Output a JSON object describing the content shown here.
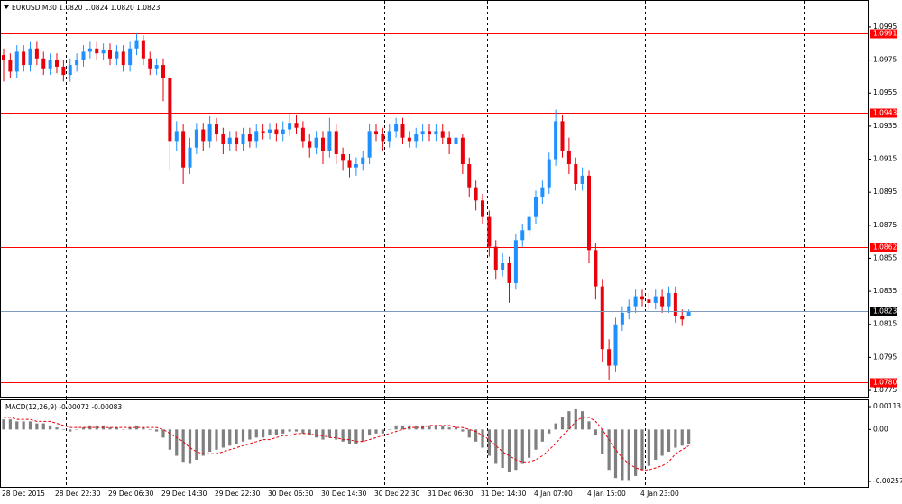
{
  "chart_data": [
    {
      "type": "candlestick",
      "title": "EURUSD,M30  1.0820 1.0824 1.0820 1.0823",
      "up_color": "#1e90ff",
      "down_color": "#e8000b",
      "categories": [
        "28 Dec 2015",
        null,
        null,
        null,
        null,
        null,
        null,
        null,
        "28 Dec 22:30",
        null,
        null,
        null,
        null,
        null,
        null,
        null,
        "29 Dec 06:30",
        null,
        null,
        null,
        null,
        null,
        null,
        null,
        "29 Dec 14:30",
        null,
        null,
        null,
        null,
        null,
        null,
        null,
        "29 Dec 22:30",
        null,
        null,
        null,
        null,
        null,
        null,
        null,
        "30 Dec 06:30",
        null,
        null,
        null,
        null,
        null,
        null,
        null,
        "30 Dec 14:30",
        null,
        null,
        null,
        null,
        null,
        null,
        null,
        "30 Dec 22:30",
        null,
        null,
        null,
        null,
        null,
        null,
        null,
        "31 Dec 06:30",
        null,
        null,
        null,
        null,
        null,
        null,
        null,
        "31 Dec 14:30",
        null,
        null,
        null,
        null,
        null,
        null,
        null,
        "4 Jan 07:00",
        null,
        null,
        null,
        null,
        null,
        null,
        null,
        "4 Jan 15:00",
        null,
        null,
        null,
        null,
        null,
        null,
        null,
        "4 Jan 23:00",
        null,
        null,
        null,
        null,
        null,
        null,
        null
      ],
      "ohlc": [
        [
          1.0978,
          1.0982,
          1.0962,
          1.0975
        ],
        [
          1.0975,
          1.0979,
          1.0964,
          1.0968
        ],
        [
          1.0968,
          1.0984,
          1.0964,
          1.098
        ],
        [
          1.098,
          1.0984,
          1.0968,
          1.0972
        ],
        [
          1.0972,
          1.0986,
          1.0968,
          1.0982
        ],
        [
          1.0982,
          1.0986,
          1.0972,
          1.0976
        ],
        [
          1.0976,
          1.098,
          1.0966,
          1.097
        ],
        [
          1.097,
          1.0979,
          1.0966,
          1.0975
        ],
        [
          1.0975,
          1.0979,
          1.0967,
          1.0971
        ],
        [
          1.0971,
          1.0975,
          1.0962,
          1.0966
        ],
        [
          1.0966,
          1.0976,
          1.0962,
          1.0972
        ],
        [
          1.0972,
          1.0979,
          1.0968,
          1.0975
        ],
        [
          1.0975,
          1.0984,
          1.0971,
          1.098
        ],
        [
          1.098,
          1.0986,
          1.0976,
          1.0982
        ],
        [
          1.0982,
          1.0986,
          1.0975,
          1.0979
        ],
        [
          1.0979,
          1.0985,
          1.0975,
          1.0981
        ],
        [
          1.0981,
          1.0985,
          1.0972,
          1.0976
        ],
        [
          1.0976,
          1.0984,
          1.0972,
          1.098
        ],
        [
          1.098,
          1.0984,
          1.0968,
          1.0972
        ],
        [
          1.0972,
          1.0986,
          1.0968,
          1.0982
        ],
        [
          1.0982,
          1.0991,
          1.0978,
          1.0987
        ],
        [
          1.0987,
          1.099,
          1.0972,
          1.0976
        ],
        [
          1.0976,
          1.098,
          1.0966,
          1.097
        ],
        [
          1.097,
          1.0976,
          1.0966,
          1.0972
        ],
        [
          1.0972,
          1.0976,
          1.095,
          1.0964
        ],
        [
          1.0964,
          1.0966,
          1.0908,
          1.0926
        ],
        [
          1.0926,
          1.0938,
          1.092,
          1.0932
        ],
        [
          1.0932,
          1.0936,
          1.09,
          1.091
        ],
        [
          1.091,
          1.0928,
          1.0906,
          1.0922
        ],
        [
          1.0922,
          1.0937,
          1.0918,
          1.0933
        ],
        [
          1.0933,
          1.0937,
          1.092,
          1.0926
        ],
        [
          1.0926,
          1.0941,
          1.0922,
          1.0936
        ],
        [
          1.0936,
          1.094,
          1.0926,
          1.093
        ],
        [
          1.093,
          1.0934,
          1.0918,
          1.0924
        ],
        [
          1.0924,
          1.0932,
          1.092,
          1.0928
        ],
        [
          1.0928,
          1.0932,
          1.092,
          1.0924
        ],
        [
          1.0924,
          1.0934,
          1.092,
          1.093
        ],
        [
          1.093,
          1.0934,
          1.0922,
          1.0926
        ],
        [
          1.0926,
          1.0936,
          1.0922,
          1.0932
        ],
        [
          1.0932,
          1.0936,
          1.0927,
          1.0931
        ],
        [
          1.0931,
          1.0937,
          1.0927,
          1.0933
        ],
        [
          1.0933,
          1.0937,
          1.0926,
          1.093
        ],
        [
          1.093,
          1.0938,
          1.0926,
          1.0933
        ],
        [
          1.0933,
          1.0943,
          1.0929,
          1.0937
        ],
        [
          1.0937,
          1.0942,
          1.093,
          1.0934
        ],
        [
          1.0934,
          1.0938,
          1.0922,
          1.0926
        ],
        [
          1.0926,
          1.093,
          1.0916,
          1.0922
        ],
        [
          1.0922,
          1.0932,
          1.0918,
          1.0928
        ],
        [
          1.0928,
          1.0932,
          1.0912,
          1.092
        ],
        [
          1.092,
          1.094,
          1.0916,
          1.0932
        ],
        [
          1.0932,
          1.0936,
          1.0912,
          1.0918
        ],
        [
          1.0918,
          1.0922,
          1.0908,
          1.0914
        ],
        [
          1.0914,
          1.0918,
          1.0904,
          1.091
        ],
        [
          1.091,
          1.0916,
          1.0905,
          1.0912
        ],
        [
          1.0912,
          1.092,
          1.0908,
          1.0916
        ],
        [
          1.0916,
          1.0936,
          1.0912,
          1.0932
        ],
        [
          1.0932,
          1.0936,
          1.0926,
          1.093
        ],
        [
          1.093,
          1.0934,
          1.092,
          1.0926
        ],
        [
          1.0926,
          1.0936,
          1.0922,
          1.0932
        ],
        [
          1.0932,
          1.094,
          1.0928,
          1.0936
        ],
        [
          1.0936,
          1.094,
          1.0924,
          1.0928
        ],
        [
          1.0928,
          1.0932,
          1.0922,
          1.0926
        ],
        [
          1.0926,
          1.0934,
          1.0922,
          1.093
        ],
        [
          1.093,
          1.0936,
          1.0926,
          1.0932
        ],
        [
          1.0932,
          1.0936,
          1.0926,
          1.093
        ],
        [
          1.093,
          1.0936,
          1.0926,
          1.0932
        ],
        [
          1.0932,
          1.0936,
          1.0924,
          1.0928
        ],
        [
          1.0928,
          1.0932,
          1.0918,
          1.0924
        ],
        [
          1.0924,
          1.0932,
          1.092,
          1.0928
        ],
        [
          1.0928,
          1.093,
          1.0906,
          1.0912
        ],
        [
          1.0912,
          1.0916,
          1.0892,
          1.0898
        ],
        [
          1.0898,
          1.0902,
          1.0884,
          1.089
        ],
        [
          1.089,
          1.0894,
          1.0876,
          1.088
        ],
        [
          1.088,
          1.0884,
          1.0856,
          1.0862
        ],
        [
          1.0862,
          1.0866,
          1.0842,
          1.0848
        ],
        [
          1.0848,
          1.0858,
          1.0844,
          1.0852
        ],
        [
          1.0852,
          1.0856,
          1.0828,
          1.084
        ],
        [
          1.084,
          1.087,
          1.0836,
          1.0866
        ],
        [
          1.0866,
          1.0876,
          1.0862,
          1.0872
        ],
        [
          1.0872,
          1.0884,
          1.0868,
          1.088
        ],
        [
          1.088,
          1.0896,
          1.0876,
          1.0892
        ],
        [
          1.0892,
          1.0902,
          1.0888,
          1.0898
        ],
        [
          1.0898,
          1.0919,
          1.0894,
          1.0915
        ],
        [
          1.0915,
          1.0945,
          1.0911,
          1.0938
        ],
        [
          1.0938,
          1.0942,
          1.0916,
          1.092
        ],
        [
          1.092,
          1.0928,
          1.0906,
          1.0912
        ],
        [
          1.0912,
          1.0916,
          1.0896,
          1.09
        ],
        [
          1.09,
          1.091,
          1.0896,
          1.0905
        ],
        [
          1.0905,
          1.0908,
          1.0852,
          1.086
        ],
        [
          1.086,
          1.0864,
          1.083,
          1.0838
        ],
        [
          1.0838,
          1.0842,
          1.0792,
          1.08
        ],
        [
          1.08,
          1.0806,
          1.0781,
          1.079
        ],
        [
          1.079,
          1.0819,
          1.0786,
          1.0815
        ],
        [
          1.0815,
          1.0826,
          1.0811,
          1.0822
        ],
        [
          1.0822,
          1.083,
          1.0818,
          1.0826
        ],
        [
          1.0826,
          1.0836,
          1.0822,
          1.0832
        ],
        [
          1.0832,
          1.0836,
          1.0826,
          1.083
        ],
        [
          1.083,
          1.0834,
          1.0824,
          1.0828
        ],
        [
          1.0828,
          1.0836,
          1.0824,
          1.0832
        ],
        [
          1.0832,
          1.0836,
          1.0822,
          1.0826
        ],
        [
          1.0826,
          1.0838,
          1.0822,
          1.0834
        ],
        [
          1.0834,
          1.0838,
          1.0816,
          1.082
        ],
        [
          1.082,
          1.0824,
          1.0814,
          1.0818
        ],
        [
          1.082,
          1.0824,
          1.082,
          1.0823
        ]
      ],
      "ylim": [
        1.07712,
        1.10108
      ],
      "yticks": [
        1.0995,
        1.0975,
        1.0955,
        1.0935,
        1.0915,
        1.0895,
        1.0875,
        1.0855,
        1.0835,
        1.0815,
        1.0795,
        1.0775
      ],
      "levels": [
        1.0991,
        1.0943,
        1.0862,
        {
          "value": 1.078,
          "label": "1.0780"
        }
      ],
      "level_color": "#ff0000",
      "last_price": 1.0823,
      "last_price_color": "#7f9cc0"
    },
    {
      "type": "macd",
      "title": "MACD(12,26,9) -0.00072 -0.00083",
      "ylim": [
        -0.00257,
        0.00113
      ],
      "yticks": [
        0.00113,
        {
          "value": 0,
          "label": "0.00"
        },
        -0.00257
      ],
      "histogram": {
        "color": "#7f7f7f",
        "values": [
          0.0005,
          0.0005,
          0.0004,
          0.0004,
          0.0004,
          0.0003,
          0.0003,
          0.0002,
          0.0001,
          0,
          -0.0001,
          0,
          0.0001,
          0.0002,
          0.0002,
          0.0002,
          0.0001,
          0.0001,
          0,
          0.0001,
          0.0002,
          0.0001,
          0,
          -0.0001,
          -0.0004,
          -0.001,
          -0.0013,
          -0.0016,
          -0.0017,
          -0.0015,
          -0.0013,
          -0.0011,
          -0.001,
          -0.0009,
          -0.0008,
          -0.0007,
          -0.0006,
          -0.0005,
          -0.0004,
          -0.0004,
          -0.0003,
          -0.0003,
          -0.0002,
          -0.0001,
          -0.0001,
          -0.0002,
          -0.0003,
          -0.0004,
          -0.0005,
          -0.0004,
          -0.0005,
          -0.0006,
          -0.0007,
          -0.0007,
          -0.0006,
          -0.0003,
          -0.0002,
          -0.0002,
          0,
          0.0002,
          0.0002,
          0.0002,
          0.0002,
          0.0002,
          0.0002,
          0.0002,
          0.0002,
          0.0001,
          0.0001,
          -0.0001,
          -0.0004,
          -0.0006,
          -0.0009,
          -0.0013,
          -0.0017,
          -0.0019,
          -0.0021,
          -0.002,
          -0.0017,
          -0.0014,
          -0.001,
          -0.0006,
          -0.0002,
          0.0003,
          0.0006,
          0.0009,
          0.001,
          0.0009,
          0.0004,
          -0.0003,
          -0.0012,
          -0.002,
          -0.0024,
          -0.0025,
          -0.0025,
          -0.0023,
          -0.002,
          -0.0018,
          -0.0015,
          -0.0013,
          -0.0011,
          -0.0009,
          -0.0008,
          -0.0007
        ]
      },
      "signal": {
        "color": "#e8000b",
        "values": [
          0.0006,
          0.0006,
          0.0005,
          0.0005,
          0.0005,
          0.0004,
          0.0004,
          0.0004,
          0.0003,
          0.0002,
          0.0001,
          0.0001,
          0.0001,
          0.0001,
          0.0001,
          0.0001,
          0.0001,
          0.0001,
          0.0001,
          0.0001,
          0.0001,
          0.0001,
          0.0001,
          0.0001,
          0,
          -0.0002,
          -0.0004,
          -0.0006,
          -0.0009,
          -0.0011,
          -0.0012,
          -0.0012,
          -0.0012,
          -0.0011,
          -0.001,
          -0.0009,
          -0.0008,
          -0.0007,
          -0.0006,
          -0.0005,
          -0.0005,
          -0.0004,
          -0.0003,
          -0.0003,
          -0.0002,
          -0.0002,
          -0.0002,
          -0.0003,
          -0.0003,
          -0.0004,
          -0.0004,
          -0.0005,
          -0.0005,
          -0.0006,
          -0.0006,
          -0.0005,
          -0.0004,
          -0.0003,
          -0.0002,
          -0.0001,
          0,
          0.0001,
          0.0001,
          0.0001,
          0.0002,
          0.0002,
          0.0002,
          0.0002,
          0.0001,
          0.0001,
          0,
          -0.0001,
          -0.0003,
          -0.0005,
          -0.0008,
          -0.0011,
          -0.0013,
          -0.0015,
          -0.0016,
          -0.0016,
          -0.0015,
          -0.0013,
          -0.001,
          -0.0007,
          -0.0003,
          0,
          0.0004,
          0.0006,
          0.0006,
          0.0004,
          0,
          -0.0005,
          -0.001,
          -0.0014,
          -0.0017,
          -0.0019,
          -0.002,
          -0.002,
          -0.0019,
          -0.0018,
          -0.0016,
          -0.0012,
          -0.001,
          -0.0008
        ]
      }
    }
  ]
}
